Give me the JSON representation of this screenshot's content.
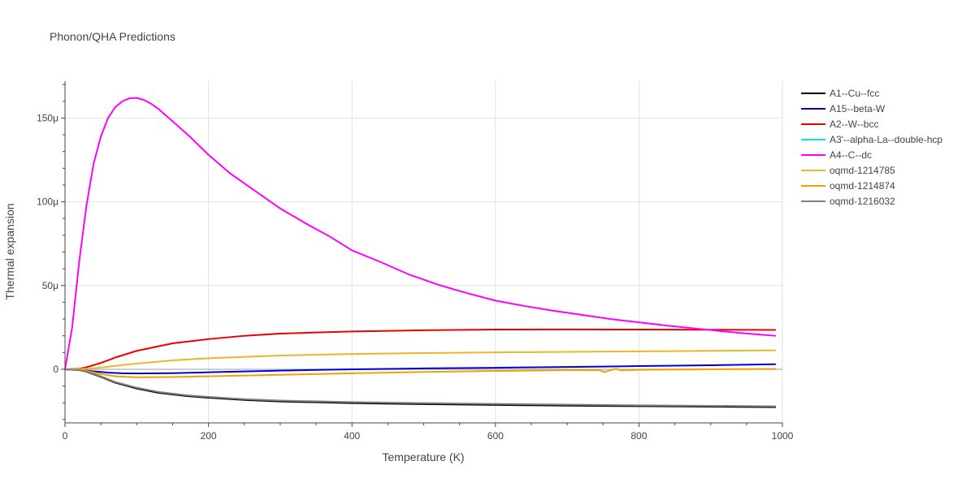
{
  "chart_data": {
    "type": "line",
    "title": "Phonon/QHA Predictions",
    "xlabel": "Temperature (K)",
    "ylabel": "Thermal expansion",
    "xlim": [
      0,
      1000
    ],
    "ylim": [
      -32,
      172
    ],
    "xticks": [
      0,
      200,
      400,
      600,
      800,
      1000
    ],
    "xtick_labels": [
      "0",
      "200",
      "400",
      "600",
      "800",
      "1000"
    ],
    "yticks": [
      0,
      50,
      100,
      150
    ],
    "ytick_labels": [
      "0",
      "50μ",
      "100μ",
      "150μ"
    ],
    "grid": true,
    "legend_position": "top-right",
    "series": [
      {
        "name": "A1--Cu--fcc",
        "color": "#000000",
        "x": [
          0,
          20,
          30,
          50,
          70,
          100,
          130,
          170,
          200,
          250,
          300,
          400,
          500,
          600,
          700,
          800,
          900,
          990
        ],
        "y": [
          0,
          -0.5,
          -1.5,
          -4.5,
          -8,
          -11.5,
          -14,
          -16,
          -17,
          -18.3,
          -19.2,
          -20.2,
          -20.8,
          -21.3,
          -21.7,
          -22.0,
          -22.3,
          -22.6
        ]
      },
      {
        "name": "A15--beta-W",
        "color": "#0000dd",
        "x": [
          0,
          20,
          40,
          60,
          80,
          100,
          150,
          200,
          300,
          400,
          500,
          600,
          700,
          800,
          900,
          990
        ],
        "y": [
          0,
          -0.3,
          -1.2,
          -2.0,
          -2.4,
          -2.5,
          -2.3,
          -1.8,
          -0.8,
          0,
          0.5,
          0.9,
          1.4,
          1.9,
          2.4,
          3.0
        ]
      },
      {
        "name": "A2--W--bcc",
        "color": "#ee0000",
        "x": [
          0,
          20,
          30,
          50,
          70,
          100,
          150,
          200,
          250,
          300,
          400,
          500,
          600,
          700,
          800,
          900,
          990
        ],
        "y": [
          0,
          0.3,
          1.2,
          3.8,
          7.0,
          11.0,
          15.5,
          18.0,
          20.0,
          21.3,
          22.6,
          23.3,
          23.7,
          23.8,
          23.7,
          23.6,
          23.5
        ]
      },
      {
        "name": "A3'--alpha-La--double-hcp",
        "color": "#00e5ee",
        "x": [],
        "y": []
      },
      {
        "name": "A4--C--dc",
        "color": "#ff00ff",
        "x": [
          0,
          10,
          20,
          30,
          40,
          50,
          60,
          70,
          80,
          90,
          100,
          110,
          120,
          130,
          150,
          175,
          200,
          230,
          270,
          300,
          340,
          370,
          400,
          440,
          480,
          520,
          560,
          600,
          640,
          680,
          720,
          760,
          800,
          840,
          880,
          920,
          960,
          990
        ],
        "y": [
          0,
          25,
          65,
          98,
          123,
          139,
          150,
          156.5,
          160,
          161.8,
          162,
          160.8,
          158.5,
          155.5,
          148,
          138.5,
          128,
          117,
          105,
          96,
          86,
          79,
          71,
          64,
          56.5,
          50.5,
          45.5,
          41,
          37.8,
          35,
          32.5,
          30,
          28,
          26,
          24.3,
          22.5,
          21.0,
          20.0
        ]
      },
      {
        "name": "oqmd-1214785",
        "color": "#f0b429",
        "x": [
          0,
          20,
          40,
          60,
          80,
          100,
          150,
          200,
          300,
          400,
          500,
          600,
          700,
          800,
          900,
          990
        ],
        "y": [
          0,
          0.1,
          0.6,
          1.5,
          2.5,
          3.4,
          5.3,
          6.6,
          8.2,
          9.1,
          9.7,
          10.1,
          10.4,
          10.7,
          11.0,
          11.3
        ]
      },
      {
        "name": "oqmd-1214874",
        "color": "#f5a000",
        "x": [
          0,
          20,
          30,
          50,
          70,
          100,
          150,
          200,
          300,
          400,
          500,
          600,
          700,
          745,
          752,
          760,
          768,
          775,
          785,
          800,
          900,
          990
        ],
        "y": [
          0,
          -0.3,
          -1.0,
          -2.8,
          -4.2,
          -4.8,
          -4.6,
          -4.2,
          -3.3,
          -2.4,
          -1.6,
          -1.0,
          -0.5,
          -0.5,
          -1.6,
          -0.6,
          0.3,
          -0.6,
          -0.5,
          -0.3,
          0.0,
          0.2
        ]
      },
      {
        "name": "oqmd-1216032",
        "color": "#7f7f7f",
        "x": [
          0,
          20,
          30,
          50,
          70,
          100,
          130,
          170,
          200,
          250,
          300,
          400,
          500,
          600,
          700,
          800,
          900,
          990
        ],
        "y": [
          0,
          -0.5,
          -1.4,
          -4.2,
          -7.6,
          -11.0,
          -13.5,
          -15.5,
          -16.5,
          -17.8,
          -18.7,
          -19.6,
          -20.2,
          -20.7,
          -21.1,
          -21.5,
          -21.8,
          -22.1
        ]
      }
    ]
  }
}
